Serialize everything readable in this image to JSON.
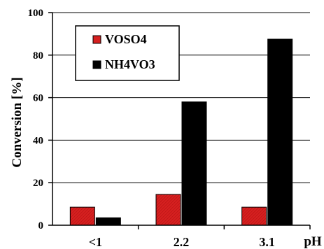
{
  "chart_data": {
    "type": "bar",
    "categories": [
      "<1",
      "2.2",
      "3.1"
    ],
    "series": [
      {
        "name": "VOSO4",
        "values": [
          8.5,
          14.5,
          8.5
        ],
        "color": "#d62020"
      },
      {
        "name": "NH4VO3",
        "values": [
          3.5,
          58,
          87.5
        ],
        "color": "#000000"
      }
    ],
    "xlabel": "pH",
    "ylabel": "Conversion [%]",
    "ylim": [
      0,
      100
    ],
    "yticks": [
      0,
      20,
      40,
      60,
      80,
      100
    ],
    "grid": true,
    "legend_position": "top-left"
  }
}
